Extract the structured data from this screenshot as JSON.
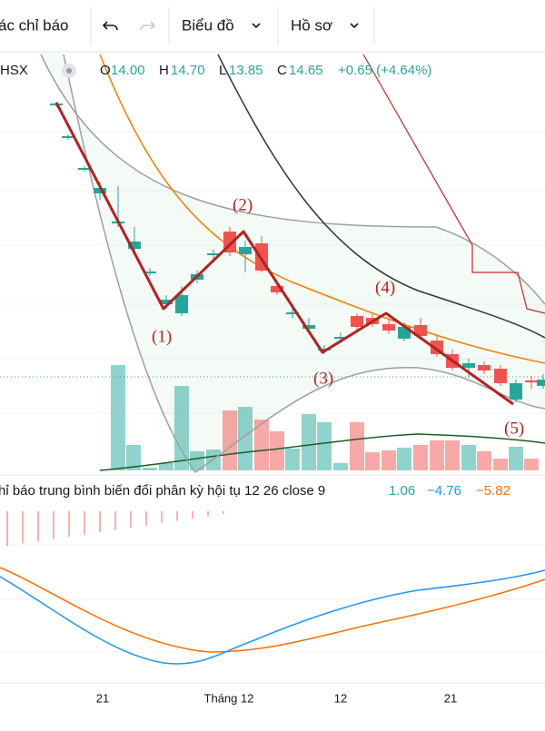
{
  "toolbar": {
    "indicators": "ác chỉ báo",
    "chart": "Biểu đồ",
    "profile": "Hồ sơ"
  },
  "legend": {
    "exchange": "HSX",
    "open_label": "O",
    "open": "14.00",
    "high_label": "H",
    "high": "14.70",
    "low_label": "L",
    "low": "13.85",
    "close_label": "C",
    "close": "14.65",
    "change": "+0.65 (+4.64%)"
  },
  "annotations": [
    "(1)",
    "(2)",
    "(3)",
    "(4)",
    "(5)"
  ],
  "macd": {
    "title": "hỉ báo trung bình biến đổi phân kỳ hội tụ 12 26 close 9",
    "histogram": "1.06",
    "macd": "−4.76",
    "signal": "−5.82"
  },
  "x_axis": [
    "21",
    "Tháng 12",
    "12",
    "21"
  ]
}
